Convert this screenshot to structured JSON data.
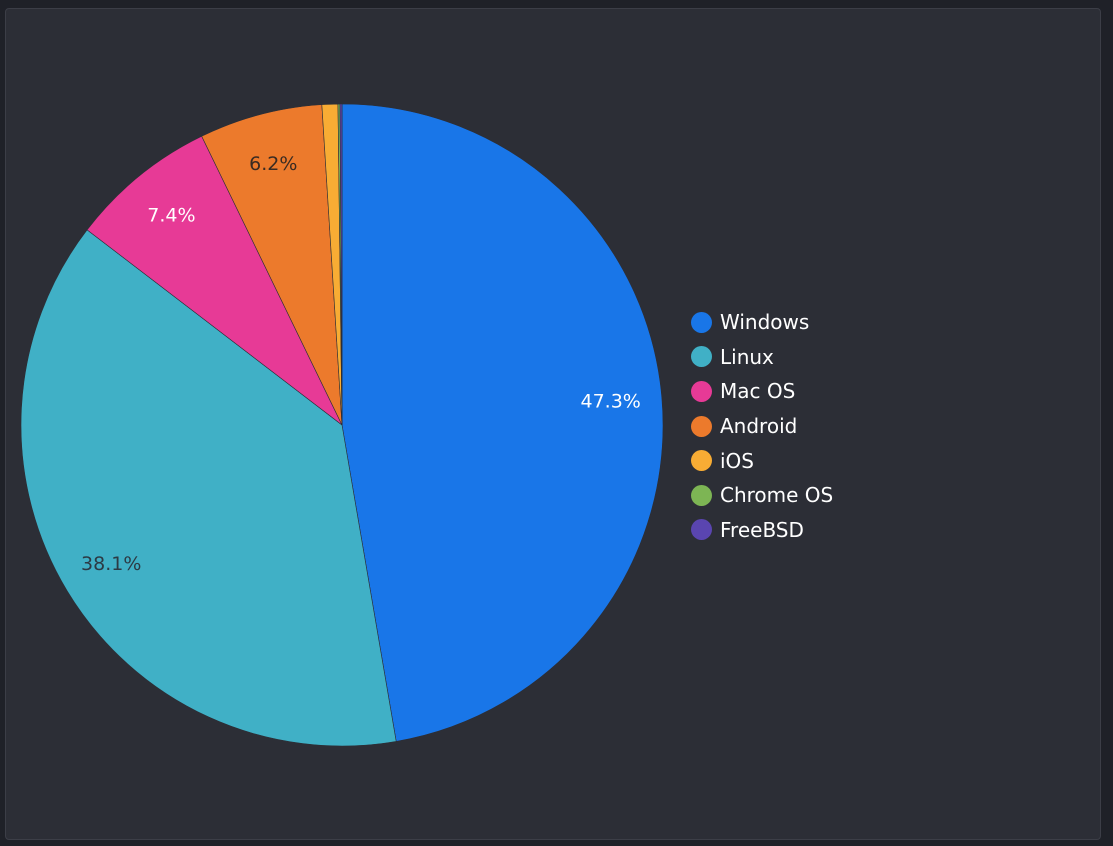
{
  "chart_data": {
    "type": "pie",
    "categories": [
      "Windows",
      "Linux",
      "Mac OS",
      "Android",
      "iOS",
      "Chrome OS",
      "FreeBSD"
    ],
    "values": [
      47.3,
      38.1,
      7.4,
      6.2,
      0.8,
      0.1,
      0.1
    ],
    "data_labels": [
      "47.3%",
      "38.1%",
      "7.4%",
      "6.2%",
      "",
      "",
      ""
    ],
    "colors": [
      "#1976e8",
      "#40b0c6",
      "#e73a96",
      "#ec7a2c",
      "#f8ac34",
      "#7db554",
      "#5a45b0"
    ],
    "label_colors": [
      "#ffffff",
      "#2c3a44",
      "#ffffff",
      "#3a2b22",
      "#333333",
      "#333333",
      "#ffffff"
    ],
    "legend": "right",
    "title": ""
  }
}
